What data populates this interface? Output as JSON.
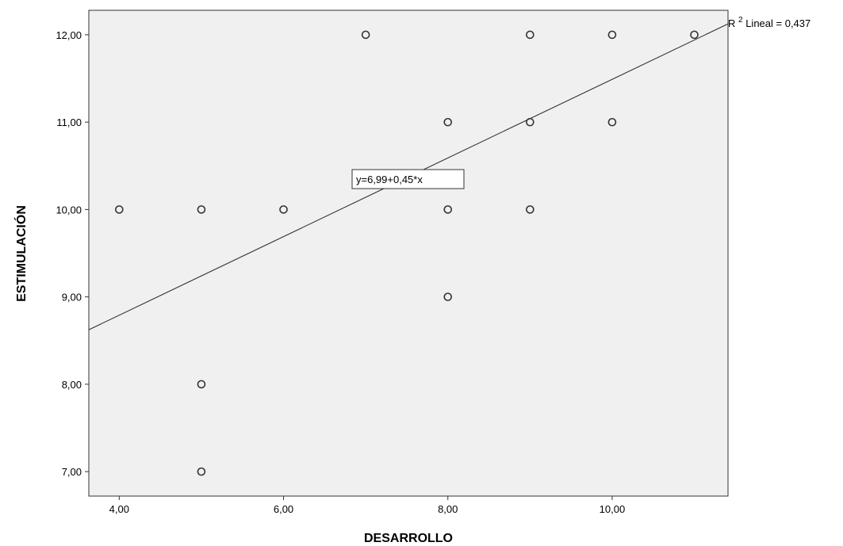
{
  "chart_data": {
    "type": "scatter",
    "xlabel": "DESARROLLO",
    "ylabel": "ESTIMULACIÓN",
    "xlim": [
      3.63,
      11.41
    ],
    "ylim": [
      6.72,
      12.28
    ],
    "x_ticks": [
      "4,00",
      "6,00",
      "8,00",
      "10,00"
    ],
    "x_tick_values": [
      4,
      6,
      8,
      10
    ],
    "y_ticks": [
      "7,00",
      "8,00",
      "9,00",
      "10,00",
      "11,00",
      "12,00"
    ],
    "y_tick_values": [
      7,
      8,
      9,
      10,
      11,
      12
    ],
    "points": [
      {
        "x": 4,
        "y": 10
      },
      {
        "x": 5,
        "y": 10
      },
      {
        "x": 5,
        "y": 8
      },
      {
        "x": 5,
        "y": 7
      },
      {
        "x": 6,
        "y": 10
      },
      {
        "x": 7,
        "y": 12
      },
      {
        "x": 8,
        "y": 11
      },
      {
        "x": 8,
        "y": 10
      },
      {
        "x": 8,
        "y": 9
      },
      {
        "x": 9,
        "y": 12
      },
      {
        "x": 9,
        "y": 11
      },
      {
        "x": 9,
        "y": 10
      },
      {
        "x": 10,
        "y": 12
      },
      {
        "x": 10,
        "y": 11
      },
      {
        "x": 11,
        "y": 12
      }
    ],
    "fit_line": {
      "intercept": 6.99,
      "slope": 0.45
    },
    "equation_label": "y=6,99+0,45*x",
    "r2_label_prefix": "R",
    "r2_label_sup": "2",
    "r2_label_suffix": " Lineal = 0,437",
    "grid": false,
    "colors": {
      "plot_background": "#f0f0f0",
      "marker_stroke": "#333333",
      "line": "#333333"
    }
  }
}
